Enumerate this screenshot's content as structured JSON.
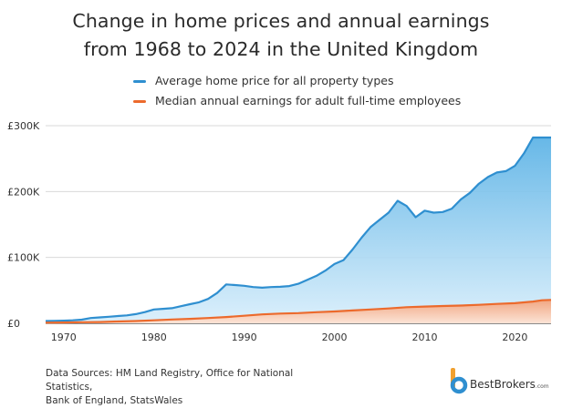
{
  "title_line1": "Change in home prices and annual earnings",
  "title_line2": "from 1968 to 2024 in the United Kingdom",
  "footer": {
    "line1": "Data Sources: HM Land Registry, Office for National Statistics,",
    "line2": "Bank of England, StatsWales"
  },
  "brand": {
    "name": "BestBrokers",
    "suffix": ".com"
  },
  "chart_data": {
    "type": "area",
    "title": "Change in home prices and annual earnings from 1968 to 2024 in the United Kingdom",
    "xlabel": "",
    "ylabel": "",
    "xlim": [
      1968,
      2024
    ],
    "ylim": [
      0,
      300000
    ],
    "x_ticks": [
      1970,
      1980,
      1990,
      2000,
      2010,
      2020
    ],
    "y_ticks": [
      0,
      100000,
      200000,
      300000
    ],
    "y_tick_labels": [
      "£0",
      "£100K",
      "£200K",
      "£300K"
    ],
    "grid": "horizontal",
    "legend_position": "top",
    "series": [
      {
        "name": "Average home price for all property types",
        "color": "#2f8fd0",
        "x": [
          1968,
          1969,
          1970,
          1971,
          1972,
          1973,
          1974,
          1975,
          1976,
          1977,
          1978,
          1979,
          1980,
          1981,
          1982,
          1983,
          1984,
          1985,
          1986,
          1987,
          1988,
          1989,
          1990,
          1991,
          1992,
          1993,
          1994,
          1995,
          1996,
          1997,
          1998,
          1999,
          2000,
          2001,
          2002,
          2003,
          2004,
          2005,
          2006,
          2007,
          2008,
          2009,
          2010,
          2011,
          2012,
          2013,
          2014,
          2015,
          2016,
          2017,
          2018,
          2019,
          2020,
          2021,
          2022,
          2023,
          2024
        ],
        "values": [
          3500,
          3800,
          4000,
          4500,
          5500,
          8000,
          9000,
          10000,
          11000,
          12000,
          14000,
          17000,
          21000,
          22000,
          23000,
          26000,
          29000,
          32000,
          37000,
          46000,
          59000,
          58000,
          57000,
          55000,
          54000,
          55000,
          55500,
          56500,
          60000,
          66000,
          72000,
          80000,
          90000,
          96000,
          112000,
          130000,
          146000,
          157000,
          168000,
          186000,
          178000,
          161000,
          171000,
          168000,
          169000,
          174000,
          188000,
          198000,
          212000,
          222000,
          229000,
          231000,
          239000,
          258000,
          282000,
          282000,
          282000
        ]
      },
      {
        "name": "Median annual earnings for adult full-time employees",
        "color": "#ec6a2c",
        "x": [
          1968,
          1970,
          1972,
          1974,
          1976,
          1978,
          1980,
          1982,
          1984,
          1986,
          1988,
          1990,
          1992,
          1994,
          1996,
          1998,
          2000,
          2002,
          2004,
          2006,
          2008,
          2010,
          2012,
          2014,
          2016,
          2018,
          2020,
          2022,
          2023,
          2024
        ],
        "values": [
          1000,
          1200,
          1600,
          2000,
          2800,
          3500,
          4500,
          5800,
          6800,
          8000,
          9500,
          11500,
          13500,
          14800,
          15500,
          16800,
          18000,
          19500,
          21000,
          22500,
          24500,
          25500,
          26200,
          27000,
          28000,
          29500,
          30500,
          33000,
          35000,
          35500
        ]
      }
    ]
  }
}
